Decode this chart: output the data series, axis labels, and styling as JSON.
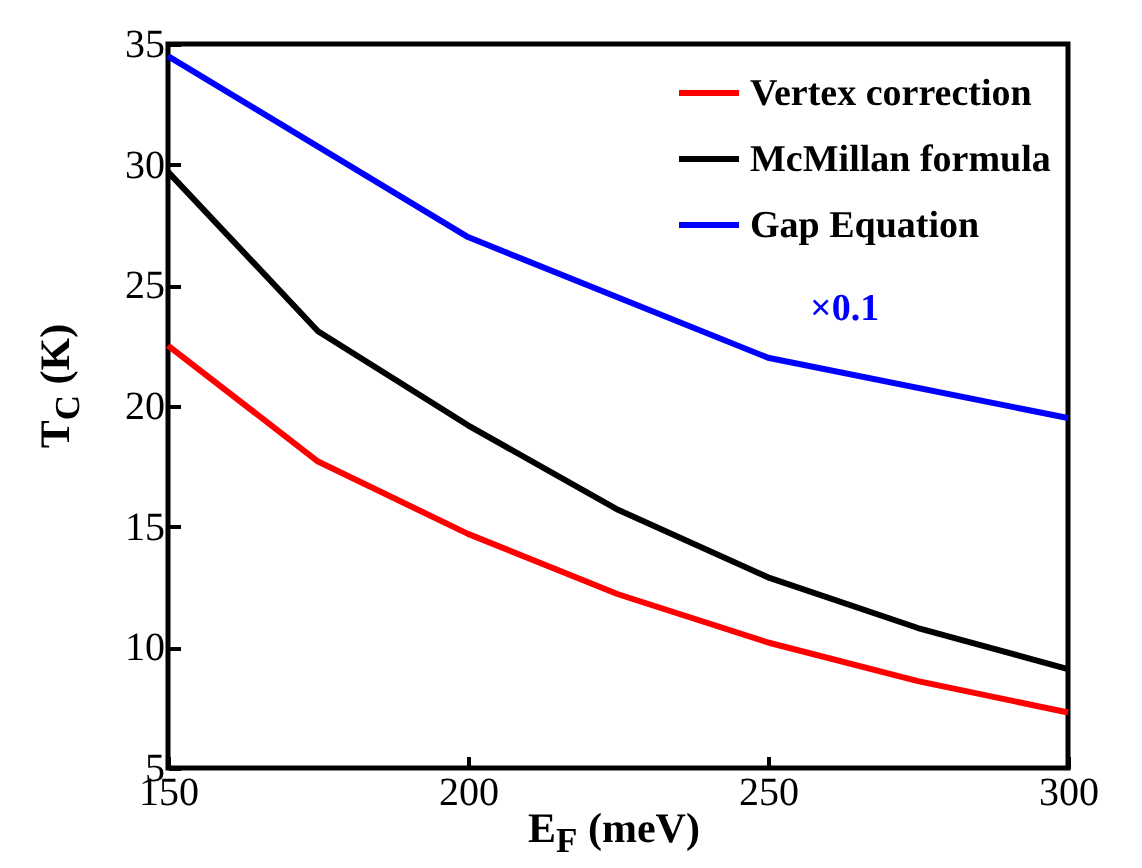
{
  "chart_data": {
    "type": "line",
    "xlabel": "E$_{F}$ (meV)",
    "ylabel": "T$_{C}$ (K)",
    "x": [
      150,
      175,
      200,
      225,
      250,
      275,
      300
    ],
    "series": [
      {
        "name": "Vertex correction",
        "color": "#ff0000",
        "values": [
          22.5,
          17.7,
          14.7,
          12.2,
          10.2,
          8.6,
          7.3
        ]
      },
      {
        "name": "McMillan formula",
        "color": "#000000",
        "values": [
          29.7,
          23.1,
          19.2,
          15.7,
          12.9,
          10.8,
          9.1
        ]
      },
      {
        "name": "Gap Equation",
        "color": "#0000ff",
        "x": [
          150,
          200,
          250,
          300
        ],
        "values": [
          34.5,
          27,
          22,
          19.5
        ]
      }
    ],
    "annotations": [
      "×0.1"
    ],
    "xlim": [
      150,
      300
    ],
    "xticks": [
      150,
      200,
      250,
      300
    ],
    "ylim": [
      5,
      35
    ],
    "yticks": [
      5,
      10,
      15,
      20,
      25,
      30,
      35
    ],
    "legend": "top right",
    "grid": false,
    "marker": "none"
  }
}
